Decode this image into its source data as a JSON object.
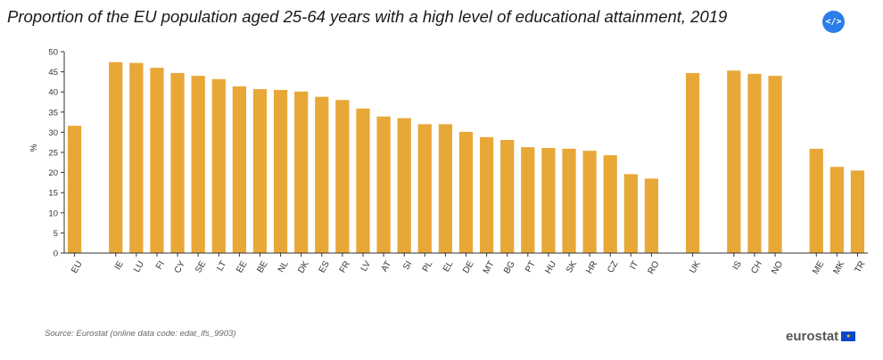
{
  "title": "Proportion of the EU population aged 25-64 years with a high level of educational attainment, 2019",
  "embed_label": "</>",
  "source": "Source: Eurostat (online data code: edat_lfs_9903)",
  "logo_text": "eurostat",
  "colors": {
    "bar": "#e8a838",
    "axis": "#333333",
    "text": "#333333"
  },
  "chart_data": {
    "type": "bar",
    "ylabel": "%",
    "ylim": [
      0,
      50
    ],
    "yticks": [
      0,
      5,
      10,
      15,
      20,
      25,
      30,
      35,
      40,
      45,
      50
    ],
    "grid": false,
    "categories": [
      "EU",
      "",
      "IE",
      "LU",
      "FI",
      "CY",
      "SE",
      "LT",
      "EE",
      "BE",
      "NL",
      "DK",
      "ES",
      "FR",
      "LV",
      "AT",
      "SI",
      "PL",
      "EL",
      "DE",
      "MT",
      "BG",
      "PT",
      "HU",
      "SK",
      "HR",
      "CZ",
      "IT",
      "RO",
      "",
      "UK",
      "",
      "IS",
      "CH",
      "NO",
      "",
      "ME",
      "MK",
      "TR"
    ],
    "values": [
      31.6,
      null,
      47.4,
      47.2,
      46.0,
      44.7,
      44.0,
      43.2,
      41.4,
      40.7,
      40.5,
      40.1,
      38.8,
      38.0,
      35.9,
      33.9,
      33.5,
      32.0,
      32.0,
      30.1,
      28.8,
      28.1,
      26.3,
      26.1,
      25.9,
      25.4,
      24.3,
      19.6,
      18.5,
      null,
      44.7,
      null,
      45.3,
      44.5,
      44.0,
      null,
      25.9,
      21.4,
      20.5
    ]
  }
}
